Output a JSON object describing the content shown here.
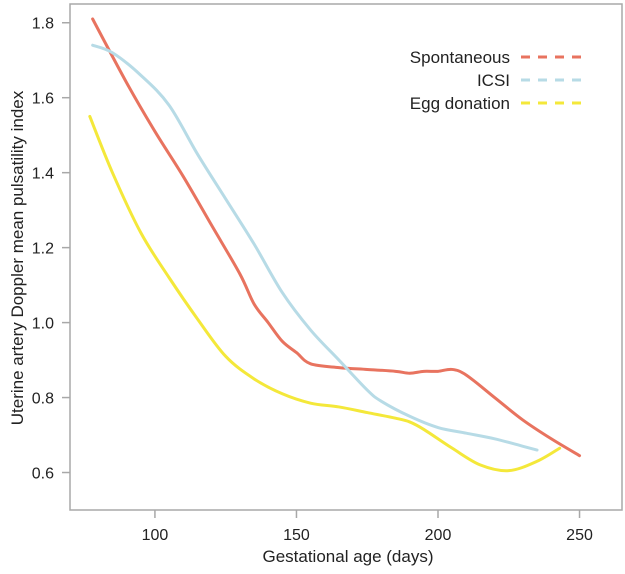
{
  "chart_data": {
    "type": "line",
    "title": "",
    "xlabel": "Gestational age (days)",
    "ylabel": "Uterine artery Doppler mean pulsatility index",
    "xlim": [
      70,
      265
    ],
    "ylim": [
      0.5,
      1.85
    ],
    "xticks": [
      100,
      150,
      200,
      250
    ],
    "yticks": [
      0.6,
      0.8,
      1.0,
      1.2,
      1.4,
      1.6,
      1.8
    ],
    "xtick_labels": [
      "100",
      "150",
      "200",
      "250"
    ],
    "ytick_labels": [
      "0.6",
      "0.8",
      "1.0",
      "1.2",
      "1.4",
      "1.6",
      "1.8"
    ],
    "legend_position": "top-right",
    "grid": false,
    "series": [
      {
        "name": "Spontaneous",
        "color": "#e8735f",
        "x": [
          78,
          90,
          100,
          110,
          120,
          130,
          135,
          140,
          145,
          150,
          155,
          165,
          175,
          185,
          190,
          195,
          200,
          205,
          210,
          220,
          230,
          240,
          250
        ],
        "y": [
          1.81,
          1.64,
          1.51,
          1.39,
          1.26,
          1.13,
          1.05,
          1.0,
          0.95,
          0.92,
          0.89,
          0.88,
          0.875,
          0.87,
          0.865,
          0.87,
          0.87,
          0.875,
          0.86,
          0.8,
          0.74,
          0.69,
          0.645
        ]
      },
      {
        "name": "ICSI",
        "color": "#b7dbe6",
        "x": [
          78,
          85,
          95,
          105,
          115,
          125,
          135,
          145,
          155,
          165,
          175,
          180,
          190,
          200,
          210,
          220,
          230,
          235
        ],
        "y": [
          1.74,
          1.72,
          1.66,
          1.58,
          1.45,
          1.33,
          1.21,
          1.08,
          0.98,
          0.9,
          0.82,
          0.79,
          0.75,
          0.72,
          0.705,
          0.69,
          0.67,
          0.66
        ]
      },
      {
        "name": "Egg donation",
        "color": "#f4e83a",
        "x": [
          77,
          85,
          95,
          105,
          115,
          125,
          135,
          145,
          155,
          165,
          175,
          185,
          190,
          195,
          205,
          215,
          225,
          235,
          243
        ],
        "y": [
          1.55,
          1.4,
          1.24,
          1.12,
          1.01,
          0.91,
          0.85,
          0.81,
          0.785,
          0.775,
          0.76,
          0.745,
          0.735,
          0.715,
          0.665,
          0.62,
          0.605,
          0.63,
          0.665
        ]
      }
    ]
  }
}
